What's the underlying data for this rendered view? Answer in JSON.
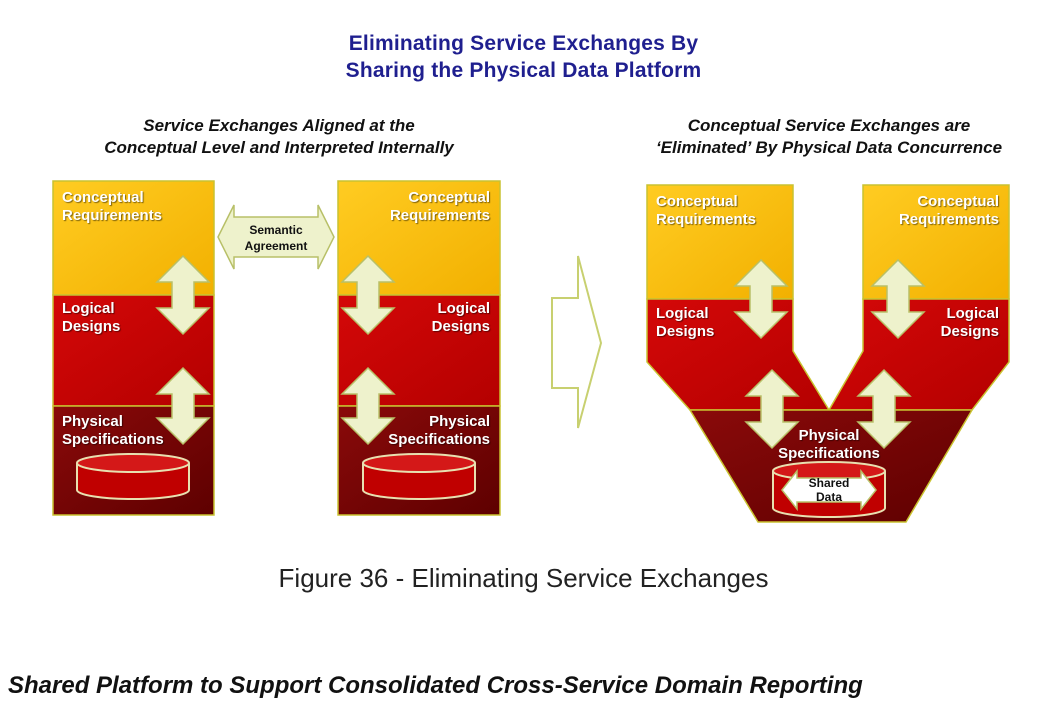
{
  "title": {
    "line1": "Eliminating Service Exchanges By",
    "line2": "Sharing the Physical Data Platform"
  },
  "left_panel": {
    "subtitle_line1": "Service Exchanges Aligned at the",
    "subtitle_line2": "Conceptual Level and Interpreted Internally",
    "left_stack": {
      "conceptual": [
        "Conceptual",
        "Requirements"
      ],
      "logical": [
        "Logical",
        "Designs"
      ],
      "physical": [
        "Physical",
        "Specifications"
      ]
    },
    "semantic_agreement": [
      "Semantic",
      "Agreement"
    ],
    "right_stack": {
      "conceptual": [
        "Conceptual",
        "Requirements"
      ],
      "logical": [
        "Logical",
        "Designs"
      ],
      "physical": [
        "Physical",
        "Specifications"
      ]
    }
  },
  "right_panel": {
    "subtitle_line1": "Conceptual Service Exchanges are",
    "subtitle_line2": "‘Eliminated’ By Physical Data Concurrence",
    "left_arm": {
      "conceptual": [
        "Conceptual",
        "Requirements"
      ],
      "logical": [
        "Logical",
        "Designs"
      ]
    },
    "right_arm": {
      "conceptual": [
        "Conceptual",
        "Requirements"
      ],
      "logical": [
        "Logical",
        "Designs"
      ]
    },
    "physical": [
      "Physical",
      "Specifications"
    ],
    "shared_data": [
      "Shared",
      "Data"
    ]
  },
  "caption": "Figure 36 - Eliminating Service Exchanges",
  "footer_heading": "Shared Platform to Support Consolidated Cross-Service Domain Reporting",
  "colors": {
    "title": "#1f1f8f",
    "conceptual": "#fcbf00",
    "logical": "#c00000",
    "physical": "#7a0000",
    "arrow_fill": "#eef2cc",
    "border": "#c9c230"
  }
}
